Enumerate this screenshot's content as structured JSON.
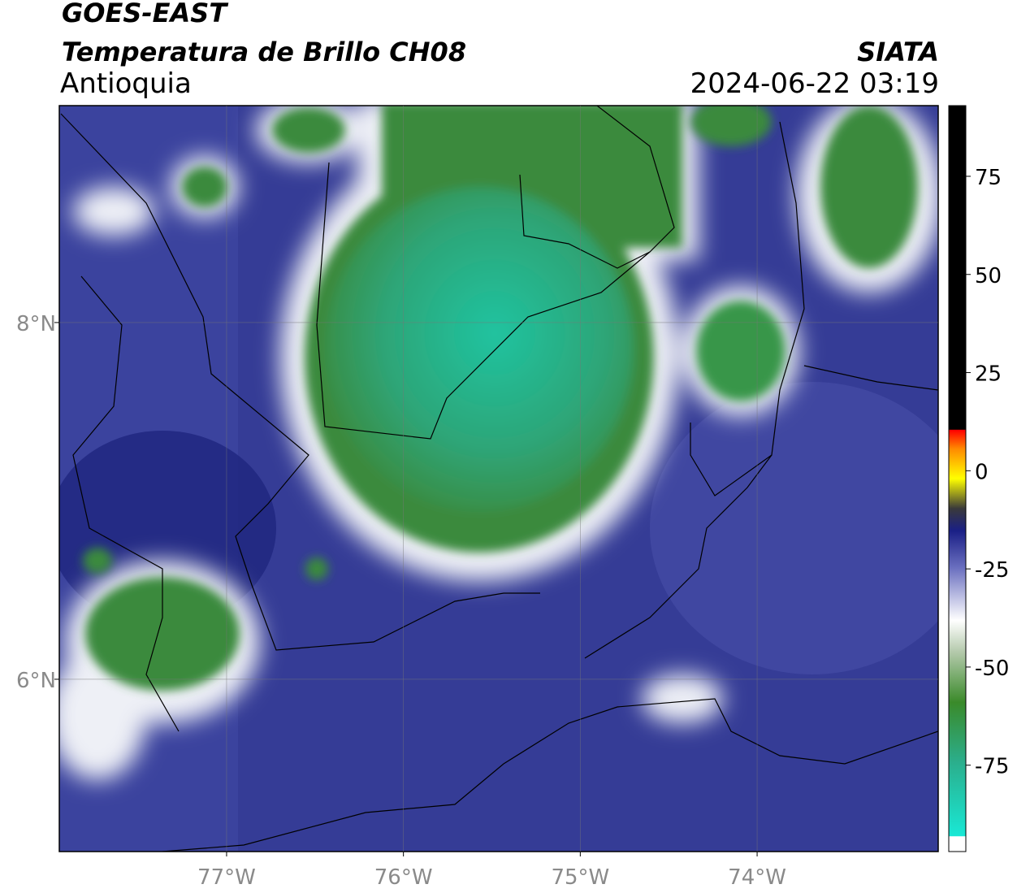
{
  "header": {
    "title": "GOES-EAST",
    "subtitle": "Temperatura de Brillo CH08",
    "region": "Antioquia",
    "source": "SIATA",
    "timestamp": "2024-06-22 03:19"
  },
  "map": {
    "xlim": [
      -77.946,
      -72.976
    ],
    "ylim": [
      5.034,
      9.216
    ],
    "xticks": [
      {
        "value": -77,
        "label": "77°W"
      },
      {
        "value": -76,
        "label": "76°W"
      },
      {
        "value": -75,
        "label": "75°W"
      },
      {
        "value": -74,
        "label": "74°W"
      }
    ],
    "yticks": [
      {
        "value": 8,
        "label": "8°N"
      },
      {
        "value": 6,
        "label": "6°N"
      }
    ],
    "grid": true
  },
  "colorbar": {
    "clim": [
      -97,
      93
    ],
    "ticks": [
      75,
      50,
      25,
      0,
      -25,
      -50,
      -75
    ]
  }
}
